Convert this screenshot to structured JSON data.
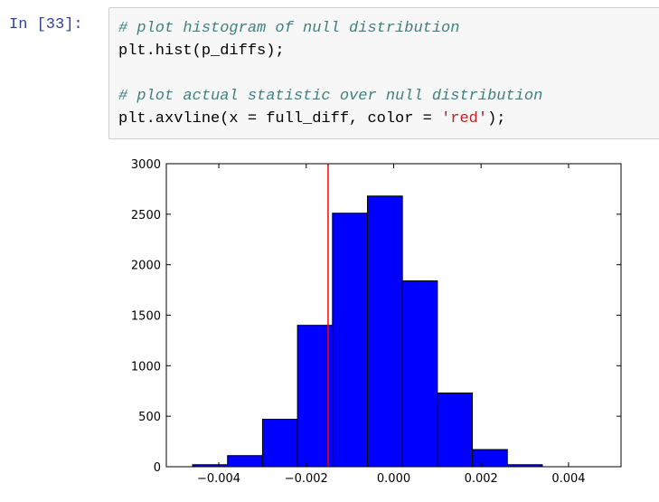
{
  "cell": {
    "prompt": "In [33]:",
    "lines": [
      {
        "comment": "# plot histogram of null distribution"
      },
      {
        "code_pre": "plt.hist(p_diffs);"
      },
      {
        "blank": true
      },
      {
        "comment": "# plot actual statistic over null distribution"
      },
      {
        "code_pre": "plt.axvline(x = full_diff, color = ",
        "string": "'red'",
        "code_post": ");"
      }
    ]
  },
  "colors": {
    "bar_fill": "#0000ff",
    "bar_edge": "#000000",
    "axvline": "#ff0000"
  },
  "chart_data": {
    "type": "bar",
    "title": "",
    "xlabel": "",
    "ylabel": "",
    "xlim": [
      -0.0052,
      0.0052
    ],
    "ylim": [
      0,
      3000
    ],
    "xticks": [
      -0.004,
      -0.002,
      0.0,
      0.002,
      0.004
    ],
    "xtick_labels": [
      "−0.004",
      "−0.002",
      "0.000",
      "0.002",
      "0.004"
    ],
    "yticks": [
      0,
      500,
      1000,
      1500,
      2000,
      2500,
      3000
    ],
    "ytick_labels": [
      "0",
      "500",
      "1000",
      "1500",
      "2000",
      "2500",
      "3000"
    ],
    "bins": [
      {
        "x0": -0.0046,
        "x1": -0.0038,
        "count": 20
      },
      {
        "x0": -0.0038,
        "x1": -0.003,
        "count": 110
      },
      {
        "x0": -0.003,
        "x1": -0.0022,
        "count": 470
      },
      {
        "x0": -0.0022,
        "x1": -0.0014,
        "count": 1400
      },
      {
        "x0": -0.0014,
        "x1": -0.0006,
        "count": 2510
      },
      {
        "x0": -0.0006,
        "x1": 0.0002,
        "count": 2680
      },
      {
        "x0": 0.0002,
        "x1": 0.001,
        "count": 1840
      },
      {
        "x0": 0.001,
        "x1": 0.0018,
        "count": 730
      },
      {
        "x0": 0.0018,
        "x1": 0.0026,
        "count": 170
      },
      {
        "x0": 0.0026,
        "x1": 0.0034,
        "count": 20
      }
    ],
    "axvline_x": -0.0015,
    "grid": false
  }
}
